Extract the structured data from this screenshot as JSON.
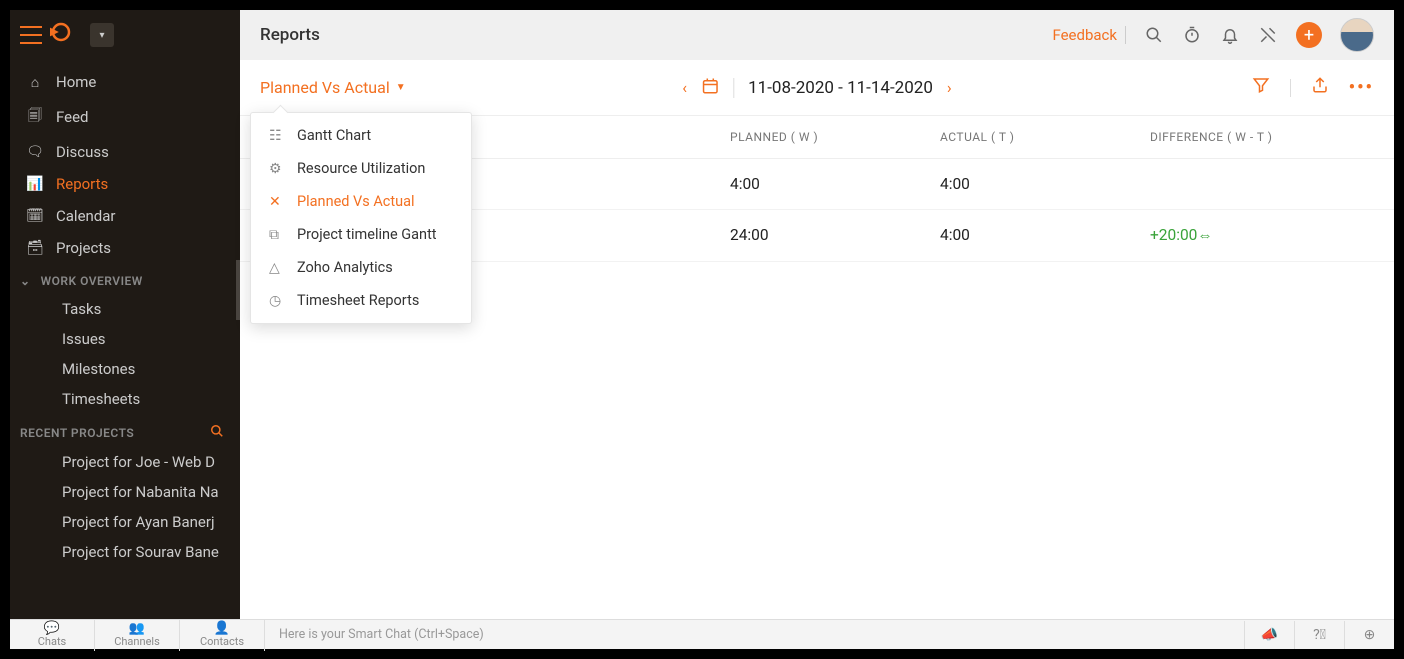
{
  "header": {
    "title": "Reports",
    "feedback": "Feedback"
  },
  "sidebar": {
    "main": [
      {
        "icon": "⌂",
        "label": "Home"
      },
      {
        "icon": "🗐",
        "label": "Feed"
      },
      {
        "icon": "🗨",
        "label": "Discuss"
      },
      {
        "icon": "📊",
        "label": "Reports",
        "active": true
      },
      {
        "icon": "🗓",
        "label": "Calendar"
      },
      {
        "icon": "🗃",
        "label": "Projects"
      }
    ],
    "work_overview_title": "WORK OVERVIEW",
    "work_overview": [
      "Tasks",
      "Issues",
      "Milestones",
      "Timesheets"
    ],
    "recent_title": "RECENT PROJECTS",
    "recent": [
      "Project for Joe - Web D",
      "Project for Nabanita Na",
      "Project for Ayan Banerj",
      "Project for Sourav Bane"
    ]
  },
  "subheader": {
    "report_name": "Planned Vs Actual",
    "date_range": "11-08-2020 - 11-14-2020"
  },
  "dropdown": {
    "items": [
      {
        "icon": "☷",
        "label": "Gantt Chart"
      },
      {
        "icon": "⚙",
        "label": "Resource Utilization"
      },
      {
        "icon": "✕",
        "label": "Planned Vs Actual",
        "active": true
      },
      {
        "icon": "⧉",
        "label": "Project timeline Gantt"
      },
      {
        "icon": "△",
        "label": "Zoho Analytics"
      },
      {
        "icon": "◷",
        "label": "Timesheet Reports"
      }
    ]
  },
  "table": {
    "headers": {
      "planned": "PLANNED ( W )",
      "actual": "ACTUAL ( T )",
      "diff": "DIFFERENCE ( W - T )"
    },
    "rows": [
      {
        "planned": "4:00",
        "actual": "4:00",
        "diff": ""
      },
      {
        "planned": "24:00",
        "actual": "4:00",
        "diff": "+20:00",
        "diff_arrow": "⇔",
        "diff_positive": true
      }
    ]
  },
  "chatbar": {
    "tabs": [
      {
        "icon": "💬",
        "label": "Chats"
      },
      {
        "icon": "👥",
        "label": "Channels"
      },
      {
        "icon": "👤",
        "label": "Contacts"
      }
    ],
    "placeholder": "Here is your Smart Chat (Ctrl+Space)"
  },
  "colors": {
    "accent": "#f37021",
    "sidebar_bg": "#1f1a15",
    "positive": "#3aa33a"
  }
}
